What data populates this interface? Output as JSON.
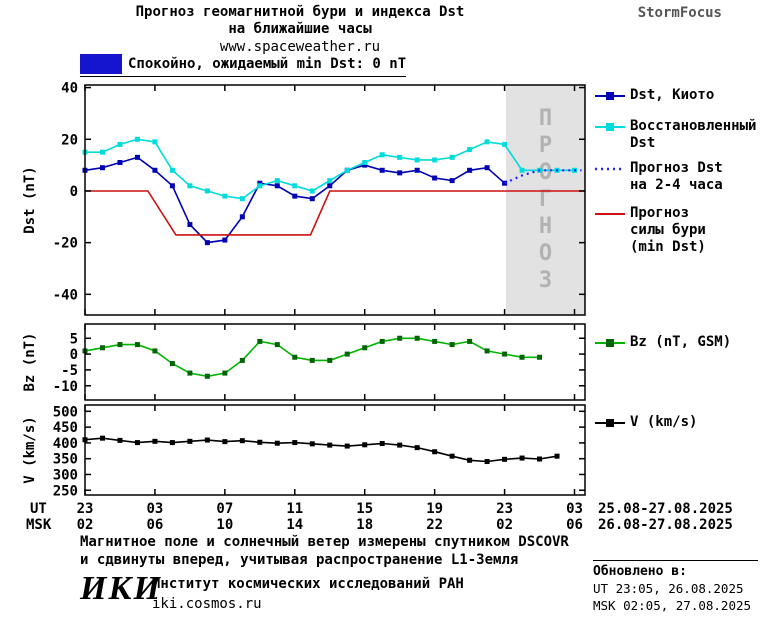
{
  "header": {
    "title_line1": "Прогноз геомагнитной бури и индекса Dst",
    "title_line2": "на ближайшие часы",
    "url": "www.spaceweather.ru",
    "brand": "StormFocus",
    "quiet_status": "Спокойно, ожидаемый min Dst: 0 nT",
    "quiet_color": "#1515d0"
  },
  "legend": {
    "dst_kyoto": "Dst, Киото",
    "restored_line1": "Восстановленный",
    "restored_line2": "Dst",
    "forecast_line1": "Прогноз Dst",
    "forecast_line2": "на 2-4 часа",
    "storm_line1": "Прогноз",
    "storm_line2": "силы бури",
    "storm_line3": "(min Dst)",
    "bz": "Bz (nT, GSM)",
    "v": "V (km/s)"
  },
  "time_axis": {
    "ut_label": "UT",
    "msk_label": "MSK",
    "tick_hours": [
      0,
      4,
      8,
      12,
      16,
      20,
      24,
      28
    ],
    "ut_ticks": [
      "23",
      "03",
      "07",
      "11",
      "15",
      "19",
      "23",
      "03"
    ],
    "msk_ticks": [
      "02",
      "06",
      "10",
      "14",
      "18",
      "22",
      "02",
      "06"
    ],
    "ut_date": "25.08-27.08.2025",
    "msk_date": "26.08-27.08.2025"
  },
  "footer": {
    "note_line1": "Магнитное поле и солнечный ветер измерены спутником DSCOVR",
    "note_line2": "и сдвинуты вперед, учитывая распространение L1-Земля",
    "iki_logo": "ИКИ",
    "institute": "Институт космических исследований РАН",
    "site": "iki.cosmos.ru",
    "updated_label": "Обновлено в:",
    "updated_ut": "UT  23:05, 26.08.2025",
    "updated_msk": "MSK 02:05, 27.08.2025"
  },
  "chart_data": [
    {
      "type": "line",
      "title": "Прогноз геомагнитной бури и индекса Dst на ближайшие часы",
      "ylabel": "Dst (nT)",
      "ylim": [
        -48,
        41
      ],
      "yticks": [
        40,
        20,
        0,
        -20,
        -40
      ],
      "xlim": [
        0,
        28.6
      ],
      "x_unit": "hours from 23:00 UT 25.08.2025",
      "forecast_region_start": 24.08,
      "forecast_label": "ПРОГНОЗ",
      "series": [
        {
          "name": "Dst, Киото",
          "color": "#0000b4",
          "marker": "square",
          "x": [
            0,
            1,
            2,
            3,
            4,
            5,
            6,
            7,
            8,
            9,
            10,
            11,
            12,
            13,
            14,
            15,
            16,
            17,
            18,
            19,
            20,
            21,
            22,
            23,
            24
          ],
          "values": [
            8,
            9,
            11,
            13,
            8,
            2,
            -13,
            -20,
            -19,
            -10,
            3,
            2,
            -2,
            -3,
            2,
            8,
            10,
            8,
            7,
            8,
            5,
            4,
            8,
            9,
            3
          ]
        },
        {
          "name": "Восстановленный Dst",
          "color": "#00dcdc",
          "marker": "square",
          "x": [
            0,
            1,
            2,
            3,
            4,
            5,
            6,
            7,
            8,
            9,
            10,
            11,
            12,
            13,
            14,
            15,
            16,
            17,
            18,
            19,
            20,
            21,
            22,
            23,
            24,
            25,
            26,
            27,
            28
          ],
          "values": [
            15,
            15,
            18,
            20,
            19,
            8,
            2,
            0,
            -2,
            -3,
            2,
            4,
            2,
            0,
            4,
            8,
            11,
            14,
            13,
            12,
            12,
            13,
            16,
            19,
            18,
            8,
            8,
            8,
            8
          ]
        },
        {
          "name": "Прогноз Dst на 2-4 часа",
          "color": "#2222ff",
          "style": "dotted",
          "x": [
            24,
            25,
            26,
            27,
            28.4
          ],
          "values": [
            3,
            6,
            8,
            8,
            8
          ]
        },
        {
          "name": "Прогноз силы бури (min Dst)",
          "color": "#cc1111",
          "x": [
            0,
            3.6,
            5.2,
            12.9,
            14,
            28.6
          ],
          "values": [
            0,
            0,
            -17,
            -17,
            0,
            0
          ]
        }
      ]
    },
    {
      "type": "line",
      "ylabel": "Bz (nT)",
      "ylim": [
        -14.5,
        9.5
      ],
      "yticks": [
        5,
        0,
        -5,
        -10
      ],
      "xlim": [
        0,
        28.6
      ],
      "series": [
        {
          "name": "Bz (nT, GSM)",
          "color": "#00b400",
          "marker": "square",
          "marker_color": "#006400",
          "x": [
            0,
            1,
            2,
            3,
            4,
            5,
            6,
            7,
            8,
            9,
            10,
            11,
            12,
            13,
            14,
            15,
            16,
            17,
            18,
            19,
            20,
            21,
            22,
            23,
            24,
            25,
            26
          ],
          "values": [
            1,
            2,
            3,
            3,
            1,
            -3,
            -6,
            -7,
            -6,
            -2,
            4,
            3,
            -1,
            -2,
            -2,
            0,
            2,
            4,
            5,
            5,
            4,
            3,
            4,
            1,
            0,
            -1,
            -1
          ]
        }
      ]
    },
    {
      "type": "line",
      "ylabel": "V (km/s)",
      "ylim": [
        235,
        520
      ],
      "yticks": [
        500,
        450,
        400,
        350,
        300,
        250
      ],
      "xlim": [
        0,
        28.6
      ],
      "series": [
        {
          "name": "V (km/s)",
          "color": "#000000",
          "marker": "square",
          "x": [
            0,
            1,
            2,
            3,
            4,
            5,
            6,
            7,
            8,
            9,
            10,
            11,
            12,
            13,
            14,
            15,
            16,
            17,
            18,
            19,
            20,
            21,
            22,
            23,
            24,
            25,
            26,
            27
          ],
          "values": [
            410,
            415,
            408,
            401,
            405,
            401,
            405,
            409,
            404,
            407,
            402,
            399,
            401,
            397,
            393,
            390,
            394,
            398,
            393,
            385,
            372,
            358,
            345,
            341,
            348,
            352,
            349,
            358
          ]
        }
      ]
    }
  ]
}
